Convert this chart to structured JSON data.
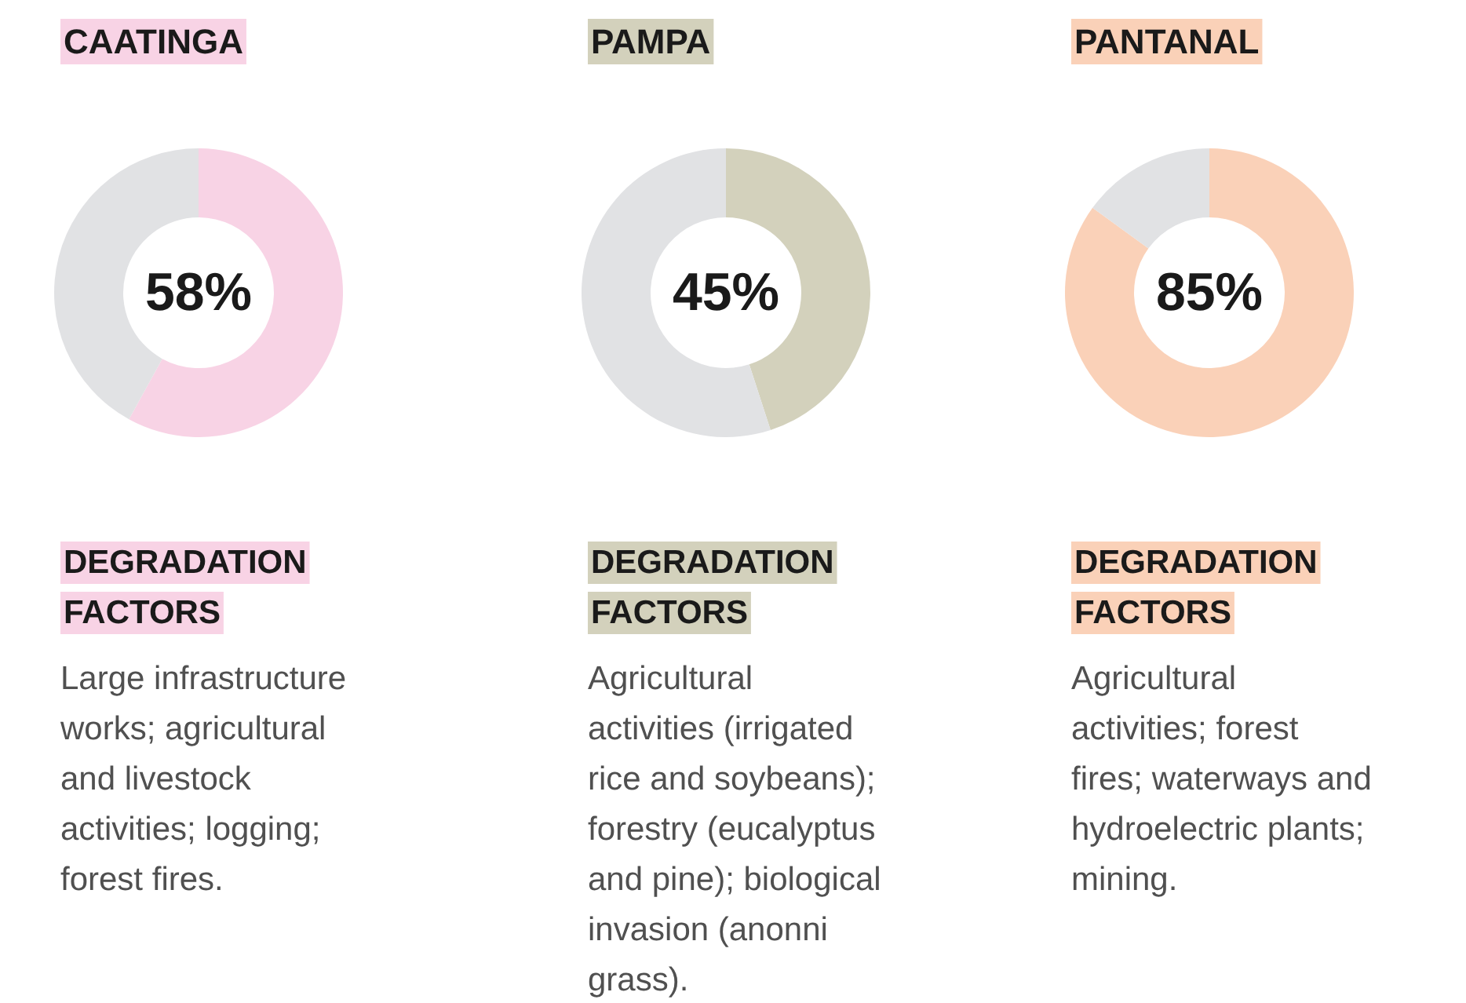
{
  "chart_data": [
    {
      "type": "donut",
      "title": "CAATINGA",
      "categories": [
        null,
        null
      ],
      "values": [
        58,
        42
      ],
      "colors": [
        "#f8d3e5",
        "#e1e2e4"
      ],
      "annotations": [
        "58%",
        "DEGRADATION\nFACTORS",
        "Large infrastructure works; agricultural and livestock activities; logging; forest fires."
      ]
    },
    {
      "type": "donut",
      "title": "PAMPA",
      "categories": [
        null,
        null
      ],
      "values": [
        45,
        55
      ],
      "colors": [
        "#d3d1bc",
        "#e1e2e4"
      ],
      "annotations": [
        "45%",
        "DEGRADATION\nFACTORS",
        "Agricultural activities (irrigated rice and soybeans); forestry (eucalyptus and pine); biological invasion (anonni grass)."
      ]
    },
    {
      "type": "donut",
      "title": "PANTANAL",
      "categories": [
        null,
        null
      ],
      "values": [
        85,
        15
      ],
      "colors": [
        "#fad1b8",
        "#e1e2e4"
      ],
      "annotations": [
        "85%",
        "DEGRADATION\nFACTORS",
        "Agricultural activities; forest fires; waterways and hydroelectric plants; mining."
      ]
    }
  ]
}
